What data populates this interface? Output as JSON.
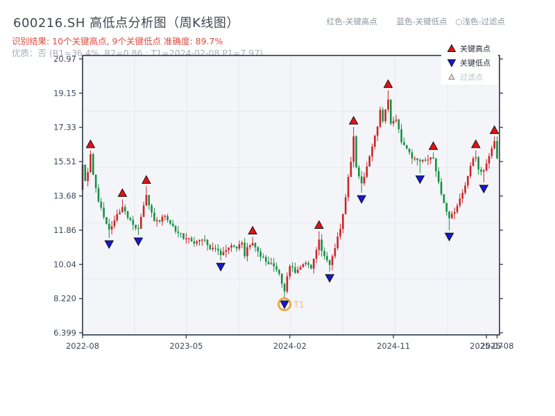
{
  "header": {
    "title": "600216.SH 高低点分析图（周K线图）",
    "color_key": [
      "红色-关键高点",
      "蓝色-关键低点",
      "○浅色-过滤点"
    ],
    "result_line": "识别结果: 10个关键高点, 9个关键低点  准确度: 89.7%",
    "quality_line": "优质：否 (R1=36.4%, R2=0.86 ; T1=2024-02-08 P1=7.97)"
  },
  "chart_data": {
    "type": "candlestick",
    "symbol": "600216.SH",
    "timeframe": "weekly",
    "n_weeks": 157,
    "x_tick_labels": [
      "2022-08",
      "2023-05",
      "2024-02",
      "2024-11",
      "2025-07",
      "2025-08"
    ],
    "x_tick_weeks": [
      0,
      39,
      78,
      117,
      152,
      156
    ],
    "y_tick_labels": [
      "6.399",
      "8.220",
      "10.04",
      "11.86",
      "13.68",
      "15.51",
      "17.33",
      "19.15",
      "20.97"
    ],
    "y_tick_values": [
      6.399,
      8.22,
      10.04,
      11.86,
      13.68,
      15.51,
      17.33,
      19.15,
      20.97
    ],
    "price_path": [
      [
        0,
        15.3
      ],
      [
        1,
        14.4
      ],
      [
        2,
        15.0
      ],
      [
        3,
        15.9
      ],
      [
        4,
        14.8
      ],
      [
        6,
        13.4
      ],
      [
        8,
        12.5
      ],
      [
        10,
        11.8
      ],
      [
        12,
        12.3
      ],
      [
        14,
        12.9
      ],
      [
        15,
        13.2
      ],
      [
        17,
        12.5
      ],
      [
        19,
        12.1
      ],
      [
        21,
        12.0
      ],
      [
        23,
        13.1
      ],
      [
        24,
        13.8
      ],
      [
        25,
        13.1
      ],
      [
        27,
        12.4
      ],
      [
        29,
        12.3
      ],
      [
        31,
        12.7
      ],
      [
        33,
        12.2
      ],
      [
        36,
        11.7
      ],
      [
        39,
        11.4
      ],
      [
        42,
        11.2
      ],
      [
        45,
        11.4
      ],
      [
        48,
        10.9
      ],
      [
        50,
        10.8
      ],
      [
        52,
        10.6
      ],
      [
        54,
        10.9
      ],
      [
        56,
        11.1
      ],
      [
        58,
        10.9
      ],
      [
        60,
        11.2
      ],
      [
        61,
        10.4
      ],
      [
        62,
        11.0
      ],
      [
        64,
        11.2
      ],
      [
        66,
        10.7
      ],
      [
        68,
        10.4
      ],
      [
        70,
        10.1
      ],
      [
        72,
        9.9
      ],
      [
        74,
        9.5
      ],
      [
        76,
        8.5
      ],
      [
        77,
        9.4
      ],
      [
        78,
        9.9
      ],
      [
        80,
        9.7
      ],
      [
        82,
        9.9
      ],
      [
        84,
        10.1
      ],
      [
        86,
        9.9
      ],
      [
        88,
        10.9
      ],
      [
        89,
        11.4
      ],
      [
        90,
        10.8
      ],
      [
        91,
        10.4
      ],
      [
        93,
        10.1
      ],
      [
        95,
        10.9
      ],
      [
        97,
        12.0
      ],
      [
        99,
        13.6
      ],
      [
        101,
        15.6
      ],
      [
        102,
        16.8
      ],
      [
        103,
        15.3
      ],
      [
        105,
        14.3
      ],
      [
        107,
        15.3
      ],
      [
        109,
        16.4
      ],
      [
        111,
        17.3
      ],
      [
        112,
        18.3
      ],
      [
        113,
        17.6
      ],
      [
        115,
        18.9
      ],
      [
        116,
        17.6
      ],
      [
        118,
        17.8
      ],
      [
        120,
        16.6
      ],
      [
        122,
        16.1
      ],
      [
        124,
        15.7
      ],
      [
        127,
        15.5
      ],
      [
        129,
        15.6
      ],
      [
        132,
        15.7
      ],
      [
        134,
        14.4
      ],
      [
        136,
        13.3
      ],
      [
        138,
        12.4
      ],
      [
        140,
        12.9
      ],
      [
        142,
        13.5
      ],
      [
        144,
        14.3
      ],
      [
        147,
        15.7
      ],
      [
        148,
        15.8
      ],
      [
        149,
        15.0
      ],
      [
        151,
        15.1
      ],
      [
        152,
        15.5
      ],
      [
        154,
        16.3
      ],
      [
        155,
        16.5
      ],
      [
        156,
        15.7
      ]
    ],
    "key_highs": [
      {
        "week": 3,
        "price": 16.1
      },
      {
        "week": 15,
        "price": 13.5
      },
      {
        "week": 24,
        "price": 14.2
      },
      {
        "week": 64,
        "price": 11.5
      },
      {
        "week": 89,
        "price": 11.8
      },
      {
        "week": 102,
        "price": 17.35
      },
      {
        "week": 115,
        "price": 19.3
      },
      {
        "week": 132,
        "price": 16.0
      },
      {
        "week": 148,
        "price": 16.1
      },
      {
        "week": 155,
        "price": 16.85
      }
    ],
    "key_lows": [
      {
        "week": 10,
        "price": 11.45
      },
      {
        "week": 21,
        "price": 11.6
      },
      {
        "week": 52,
        "price": 10.25
      },
      {
        "week": 76,
        "price": 7.97
      },
      {
        "week": 93,
        "price": 9.65
      },
      {
        "week": 105,
        "price": 13.85
      },
      {
        "week": 127,
        "price": 14.9
      },
      {
        "week": 138,
        "price": 11.85
      },
      {
        "week": 151,
        "price": 14.4
      }
    ],
    "t1": {
      "week": 76,
      "price": 7.97,
      "label": "T1"
    },
    "legend": [
      {
        "label": "关键高点",
        "marker": "triangle-up",
        "color": "#e41212",
        "text_color": "#262b33"
      },
      {
        "label": "关键低点",
        "marker": "triangle-down",
        "color": "#1717d2",
        "text_color": "#262b33"
      },
      {
        "label": "过滤点",
        "marker": "triangle-up-light",
        "color": "#f7ddd3",
        "text_color": "#b9c1c9"
      }
    ],
    "colors": {
      "up_candle": "#cc2424",
      "down_candle": "#169044",
      "marker_high": "#e41212",
      "marker_low": "#1717d2",
      "marker_edge": "#141414",
      "t1_ring": "#f0a23a",
      "t1_text": "#f5bb72",
      "axis": "#2b3648",
      "axis_label": "#3e4756",
      "grid": "#e7e9f0",
      "plot_bg": "#f4f5f9",
      "legend_bg": "#ffffff"
    }
  }
}
